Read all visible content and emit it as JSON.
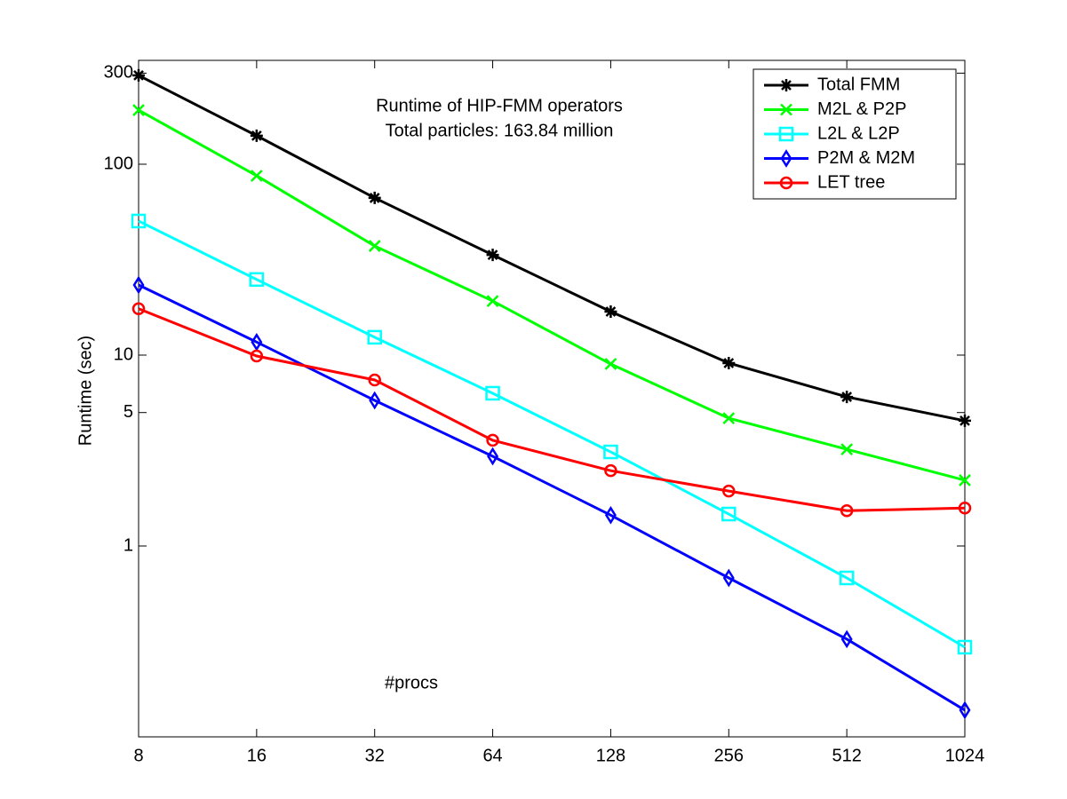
{
  "chart_data": {
    "type": "line",
    "title": [
      "Runtime  of HIP-FMM operators",
      "Total particles: 163.84 million"
    ],
    "x_label": "#procs",
    "y_label": "Runtime (sec)",
    "x": [
      8,
      16,
      32,
      64,
      128,
      256,
      512,
      1024
    ],
    "xlim": [
      8,
      1024
    ],
    "xticks": [
      8,
      16,
      32,
      64,
      128,
      256,
      512,
      1024
    ],
    "xscale": "log",
    "ylim": [
      0.1,
      350
    ],
    "yticks": [
      1,
      5,
      10,
      100,
      300
    ],
    "yscale": "log",
    "legend": "upper right",
    "series": [
      {
        "name": "Total FMM",
        "color": "#000000",
        "marker": "star",
        "values": [
          292,
          141,
          66.6,
          33.5,
          16.9,
          9.08,
          6.04,
          4.53
        ]
      },
      {
        "name": "M2L & P2P",
        "color": "#00ff00",
        "marker": "x",
        "values": [
          192,
          87,
          37.3,
          19.2,
          8.98,
          4.67,
          3.21,
          2.21
        ]
      },
      {
        "name": "L2L & L2P",
        "color": "#00ffff",
        "marker": "square",
        "values": [
          50.4,
          24.9,
          12.4,
          6.31,
          3.11,
          1.47,
          0.68,
          0.295
        ]
      },
      {
        "name": "P2M & M2M",
        "color": "#0000ff",
        "marker": "diamond",
        "values": [
          23.3,
          11.7,
          5.79,
          2.95,
          1.45,
          0.68,
          0.325,
          0.138
        ]
      },
      {
        "name": "LET tree",
        "color": "#ff0000",
        "marker": "circle",
        "values": [
          17.5,
          9.89,
          7.41,
          3.58,
          2.48,
          1.94,
          1.53,
          1.58
        ]
      }
    ]
  }
}
